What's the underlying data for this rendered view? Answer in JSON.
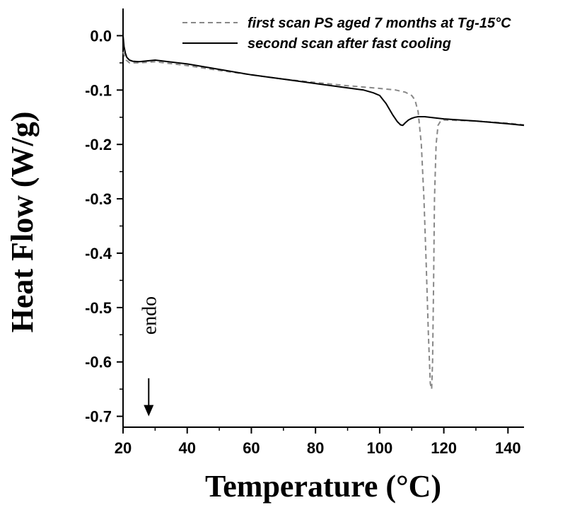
{
  "chart_data": {
    "type": "line",
    "xlabel": "Temperature (°C)",
    "ylabel": "Heat Flow (W/g)",
    "xlim": [
      20,
      145
    ],
    "ylim": [
      -0.72,
      0.05
    ],
    "x_ticks": [
      20,
      40,
      60,
      80,
      100,
      120,
      140
    ],
    "x_tick_labels": [
      "20",
      "40",
      "60",
      "80",
      "100",
      "120",
      "140"
    ],
    "y_ticks": [
      0.0,
      -0.1,
      -0.2,
      -0.3,
      -0.4,
      -0.5,
      -0.6,
      -0.7
    ],
    "y_tick_labels": [
      "0.0",
      "-0.1",
      "-0.2",
      "-0.3",
      "-0.4",
      "-0.5",
      "-0.6",
      "-0.7"
    ],
    "grid": false,
    "legend_position": "top-right",
    "series": [
      {
        "name": "first scan PS aged 7 months at Tg-15°C",
        "style": "dashed",
        "color": "#888888",
        "x": [
          20,
          21,
          22,
          25,
          30,
          40,
          50,
          60,
          70,
          80,
          90,
          100,
          105,
          108,
          110,
          111,
          112,
          113,
          113.8,
          114.5,
          115.2,
          115.8,
          116.2,
          116.5,
          116.8,
          117.1,
          117.6,
          118.2,
          119,
          120,
          125,
          130,
          140,
          145
        ],
        "y": [
          -0.03,
          -0.045,
          -0.05,
          -0.05,
          -0.048,
          -0.055,
          -0.064,
          -0.072,
          -0.08,
          -0.086,
          -0.092,
          -0.097,
          -0.1,
          -0.104,
          -0.11,
          -0.118,
          -0.14,
          -0.2,
          -0.3,
          -0.42,
          -0.55,
          -0.64,
          -0.65,
          -0.6,
          -0.46,
          -0.3,
          -0.2,
          -0.165,
          -0.157,
          -0.155,
          -0.156,
          -0.157,
          -0.161,
          -0.164
        ]
      },
      {
        "name": "second scan after fast cooling",
        "style": "solid",
        "color": "#000000",
        "x": [
          20,
          20.3,
          20.7,
          21.2,
          22,
          23,
          25,
          30,
          40,
          50,
          60,
          70,
          80,
          90,
          95,
          98,
          100,
          102,
          104,
          105.5,
          106.5,
          107.2,
          108,
          109,
          110,
          111,
          112,
          114,
          120,
          130,
          140,
          145
        ],
        "y": [
          0.0,
          -0.02,
          -0.032,
          -0.04,
          -0.045,
          -0.047,
          -0.048,
          -0.045,
          -0.052,
          -0.062,
          -0.072,
          -0.08,
          -0.088,
          -0.096,
          -0.1,
          -0.105,
          -0.11,
          -0.125,
          -0.145,
          -0.158,
          -0.164,
          -0.165,
          -0.16,
          -0.155,
          -0.152,
          -0.15,
          -0.149,
          -0.149,
          -0.153,
          -0.157,
          -0.162,
          -0.165
        ]
      }
    ],
    "annotations": [
      {
        "text": "endo",
        "arrow": "down",
        "x": 28,
        "y_text": -0.55,
        "y_arrow_start": -0.63,
        "y_arrow_end": -0.7
      }
    ]
  }
}
